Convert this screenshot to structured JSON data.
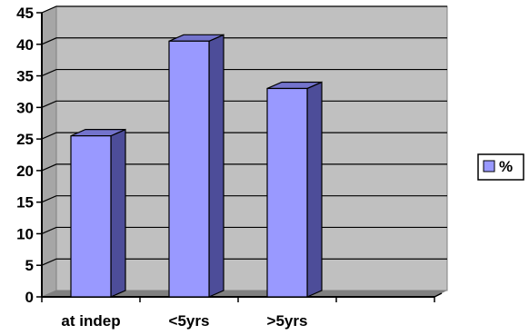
{
  "chart_data": {
    "type": "bar",
    "categories": [
      "at indep",
      "<5yrs",
      ">5yrs",
      ""
    ],
    "series": [
      {
        "name": "%",
        "values": [
          25.5,
          40.5,
          33,
          null
        ]
      }
    ],
    "title": "",
    "xlabel": "",
    "ylabel": "",
    "ylim": [
      0,
      45
    ],
    "yticks": [
      0,
      5,
      10,
      15,
      20,
      25,
      30,
      35,
      40,
      45
    ],
    "grid": true,
    "legend": "right",
    "colors": {
      "bar_front": "#9999ff",
      "bar_side": "#4d4d99",
      "bar_top": "#7373cc",
      "plot_back": "#c0c0c0",
      "plot_floor": "#808080",
      "gridline": "#000000"
    }
  }
}
